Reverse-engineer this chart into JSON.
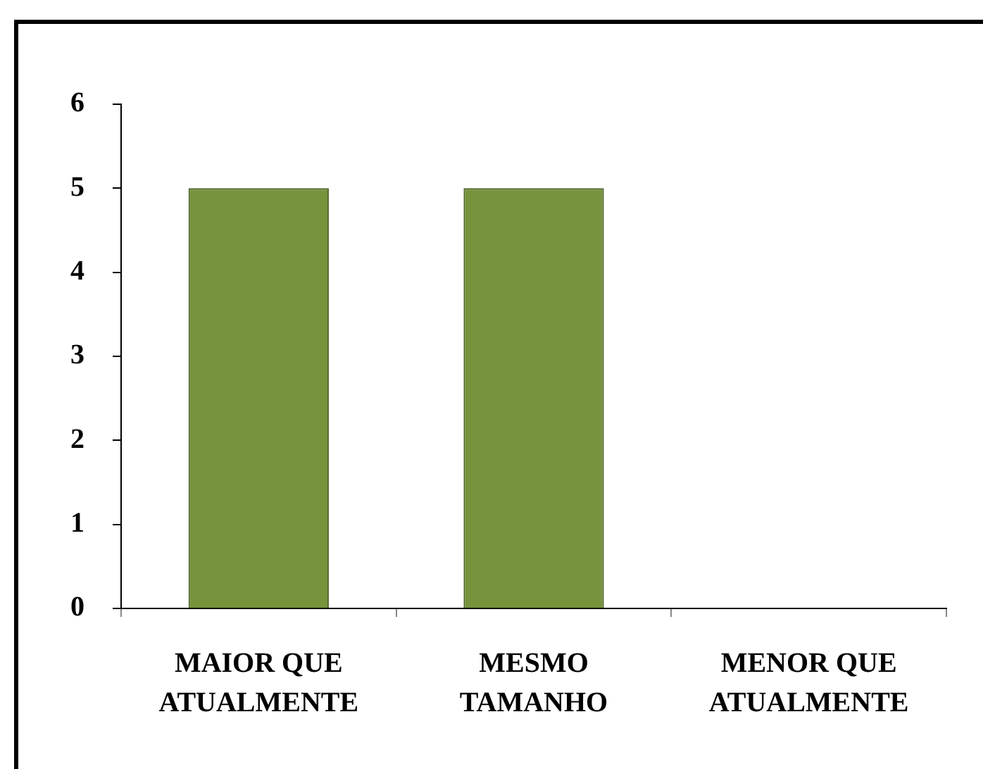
{
  "chart_data": {
    "type": "bar",
    "categories": [
      "MAIOR QUE ATUALMENTE",
      "MESMO TAMANHO",
      "MENOR QUE ATUALMENTE"
    ],
    "values": [
      5,
      5,
      0
    ],
    "color": "#77933c",
    "ylim": [
      0,
      6
    ],
    "yticks": [
      0,
      1,
      2,
      3,
      4,
      5,
      6
    ],
    "grid": false
  }
}
